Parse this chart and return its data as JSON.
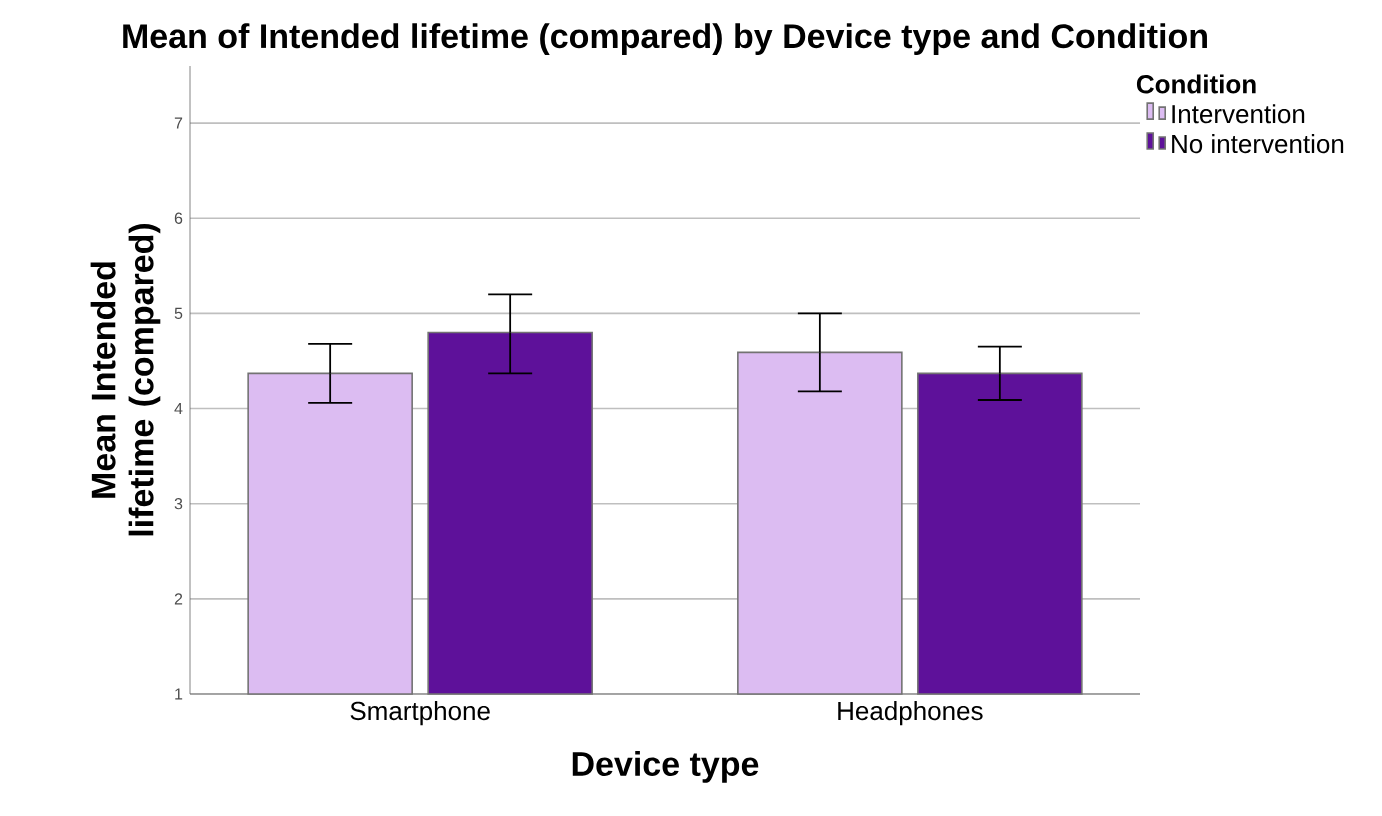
{
  "chart_data": {
    "type": "bar",
    "title": "Mean of Intended lifetime (compared) by Device type and Condition",
    "xlabel": "Device type",
    "ylabel": "Mean Intended lifetime (compared)",
    "legend_title": "Condition",
    "categories": [
      "Smartphone",
      "Headphones"
    ],
    "series": [
      {
        "name": "Intervention",
        "color": "#dcbcf2",
        "values": [
          4.37,
          4.59
        ],
        "errors": [
          [
            4.06,
            4.68
          ],
          [
            4.18,
            5.0
          ]
        ]
      },
      {
        "name": "No intervention",
        "color": "#5e119a",
        "values": [
          4.8,
          4.37
        ],
        "errors": [
          [
            4.37,
            5.2
          ],
          [
            4.09,
            4.65
          ]
        ]
      }
    ],
    "ylim": [
      1,
      7.6
    ],
    "yticks": [
      1,
      2,
      3,
      4,
      5,
      6,
      7
    ],
    "grid": "y",
    "legend": "top right"
  }
}
